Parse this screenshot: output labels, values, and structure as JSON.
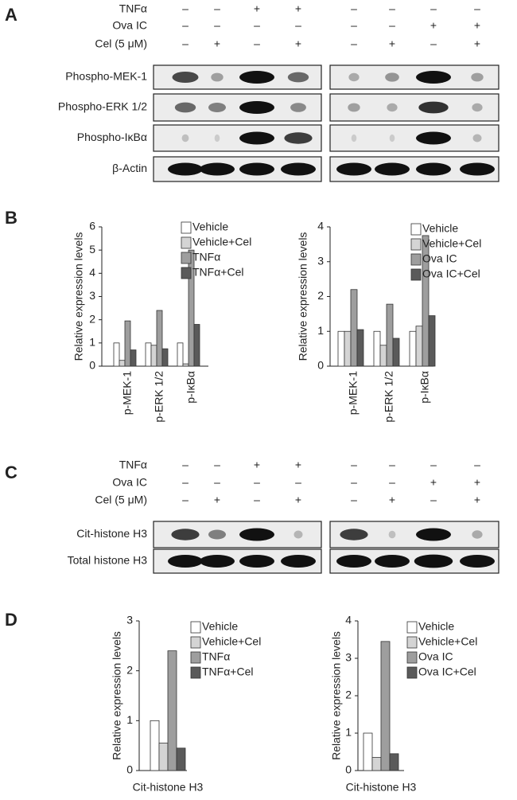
{
  "blots": [
    {
      "label": "A",
      "treatments": [
        {
          "name": "TNFα",
          "signs": [
            "–",
            "–",
            "+",
            "+",
            "–",
            "–",
            "–",
            "–"
          ]
        },
        {
          "name": "Ova IC",
          "signs": [
            "–",
            "–",
            "–",
            "–",
            "–",
            "–",
            "+",
            "+"
          ]
        },
        {
          "name": "Cel (5 μM)",
          "signs": [
            "–",
            "+",
            "–",
            "+",
            "–",
            "+",
            "–",
            "+"
          ]
        }
      ],
      "rows": [
        "Phospho-MEK-1",
        "Phospho-ERK 1/2",
        "Phospho-IκBα",
        "β-Actin"
      ]
    },
    {
      "label": "C",
      "treatments": [
        {
          "name": "TNFα",
          "signs": [
            "–",
            "–",
            "+",
            "+",
            "–",
            "–",
            "–",
            "–"
          ]
        },
        {
          "name": "Ova IC",
          "signs": [
            "–",
            "–",
            "–",
            "–",
            "–",
            "–",
            "+",
            "+"
          ]
        },
        {
          "name": "Cel (5 μM)",
          "signs": [
            "–",
            "+",
            "–",
            "+",
            "–",
            "+",
            "–",
            "+"
          ]
        }
      ],
      "rows": [
        "Cit-histone H3",
        "Total histone H3"
      ]
    }
  ],
  "chart_panel_labels": [
    "B",
    "D"
  ],
  "chart_data": [
    {
      "type": "bar",
      "ylabel": "Relative expression levels",
      "categories": [
        "p-MEK-1",
        "p-ERK 1/2",
        "p-IκBα"
      ],
      "series": [
        {
          "name": "Vehicle",
          "color": "#ffffff",
          "values": [
            1,
            1,
            1
          ]
        },
        {
          "name": "Vehicle+Cel",
          "color": "#d4d4d4",
          "values": [
            0.25,
            0.9,
            0.1
          ]
        },
        {
          "name": "TNFα",
          "color": "#9e9e9e",
          "values": [
            1.95,
            2.4,
            5.0
          ]
        },
        {
          "name": "TNFα+Cel",
          "color": "#5a5a5a",
          "values": [
            0.7,
            0.75,
            1.8
          ]
        }
      ],
      "ylim": [
        0,
        6
      ],
      "yticks": [
        0,
        1,
        2,
        3,
        4,
        5,
        6
      ]
    },
    {
      "type": "bar",
      "ylabel": "Relative expression levels",
      "categories": [
        "p-MEK-1",
        "p-ERK 1/2",
        "p-IκBα"
      ],
      "series": [
        {
          "name": "Vehicle",
          "color": "#ffffff",
          "values": [
            1,
            1,
            1
          ]
        },
        {
          "name": "Vehicle+Cel",
          "color": "#d4d4d4",
          "values": [
            1,
            0.6,
            1.15
          ]
        },
        {
          "name": "Ova IC",
          "color": "#9e9e9e",
          "values": [
            2.2,
            1.78,
            3.75
          ]
        },
        {
          "name": "Ova IC+Cel",
          "color": "#5a5a5a",
          "values": [
            1.05,
            0.8,
            1.45
          ]
        }
      ],
      "ylim": [
        0,
        4
      ],
      "yticks": [
        0,
        1,
        2,
        3,
        4
      ]
    },
    {
      "type": "bar",
      "ylabel": "Relative expression levels",
      "categories": [
        "Cit-histone H3"
      ],
      "series": [
        {
          "name": "Vehicle",
          "color": "#ffffff",
          "values": [
            1
          ]
        },
        {
          "name": "Vehicle+Cel",
          "color": "#d4d4d4",
          "values": [
            0.55
          ]
        },
        {
          "name": "TNFα",
          "color": "#9e9e9e",
          "values": [
            2.4
          ]
        },
        {
          "name": "TNFα+Cel",
          "color": "#5a5a5a",
          "values": [
            0.45
          ]
        }
      ],
      "ylim": [
        0,
        3
      ],
      "yticks": [
        0,
        1,
        2,
        3
      ]
    },
    {
      "type": "bar",
      "ylabel": "Relative expression levels",
      "categories": [
        "Cit-histone H3"
      ],
      "series": [
        {
          "name": "Vehicle",
          "color": "#ffffff",
          "values": [
            1
          ]
        },
        {
          "name": "Vehicle+Cel",
          "color": "#d4d4d4",
          "values": [
            0.35
          ]
        },
        {
          "name": "Ova IC",
          "color": "#9e9e9e",
          "values": [
            3.45
          ]
        },
        {
          "name": "Ova IC+Cel",
          "color": "#5a5a5a",
          "values": [
            0.45
          ]
        }
      ],
      "ylim": [
        0,
        4
      ],
      "yticks": [
        0,
        1,
        2,
        3,
        4
      ]
    }
  ]
}
